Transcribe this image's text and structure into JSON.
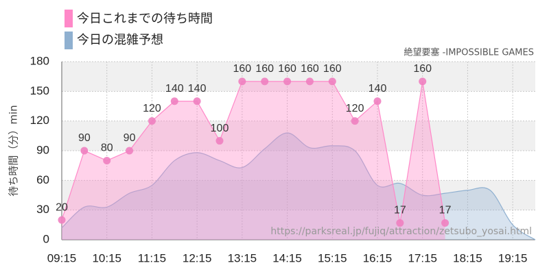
{
  "chart_data": {
    "type": "area",
    "y_label": "待ち時間（分）min",
    "watermark": "絶望要塞 -IMPOSSIBLE GAMES",
    "source_url": "https://parksreal.jp/fujiq/attraction/zetsubo_yosai.html",
    "categories": [
      "09:15",
      null,
      "10:15",
      null,
      "11:15",
      null,
      "12:15",
      null,
      "13:15",
      null,
      "14:15",
      null,
      "15:15",
      null,
      "16:15",
      null,
      "17:15",
      null,
      "18:15",
      null,
      "19:15",
      null
    ],
    "series": [
      {
        "name": "今日これまでの待ち時間",
        "color": "#ff88c8",
        "values": [
          20,
          90,
          80,
          90,
          120,
          140,
          140,
          100,
          160,
          160,
          160,
          160,
          160,
          120,
          140,
          17,
          160,
          17,
          null,
          null,
          null,
          null
        ]
      },
      {
        "name": "今日の混雑予想",
        "color": "#8fb0d0",
        "values": [
          12,
          33,
          33,
          47,
          55,
          80,
          88,
          80,
          73,
          92,
          108,
          93,
          95,
          90,
          55,
          57,
          45,
          47,
          50,
          50,
          15,
          0
        ]
      }
    ],
    "ylim": [
      0,
      180
    ],
    "yticks": [
      0,
      30,
      60,
      90,
      120,
      150,
      180
    ],
    "grid": true
  }
}
